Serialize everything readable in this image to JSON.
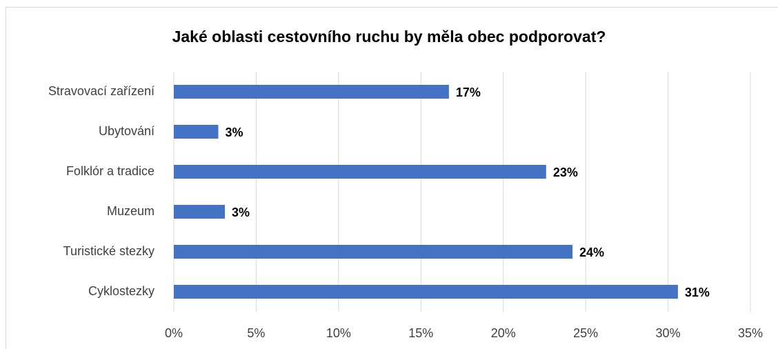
{
  "chart_data": {
    "type": "bar",
    "orientation": "horizontal",
    "title": "Jaké oblasti cestovního ruchu by měla obec podporovat?",
    "categories": [
      "Stravovací zařízení",
      "Ubytování",
      "Folklór a tradice",
      "Muzeum",
      "Turistické stezky",
      "Cyklostezky"
    ],
    "values": [
      16.7,
      2.7,
      22.6,
      3.1,
      24.2,
      30.6
    ],
    "value_labels": [
      "17%",
      "3%",
      "23%",
      "3%",
      "24%",
      "31%"
    ],
    "color": "#4472c4",
    "xlim": [
      0,
      35
    ],
    "xticks": [
      {
        "value": 0,
        "label": "0%"
      },
      {
        "value": 5,
        "label": "5%"
      },
      {
        "value": 10,
        "label": "10%"
      },
      {
        "value": 15,
        "label": "15%"
      },
      {
        "value": 20,
        "label": "20%"
      },
      {
        "value": 25,
        "label": "25%"
      },
      {
        "value": 30,
        "label": "30%"
      },
      {
        "value": 35,
        "label": "35%"
      }
    ],
    "grid": true
  }
}
